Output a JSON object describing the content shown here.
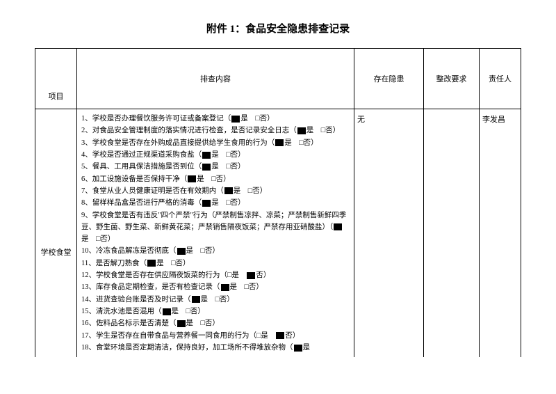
{
  "title": "附件 1：食品安全隐患排查记录",
  "headers": {
    "project": "项目",
    "content": "排查内容",
    "hazard": "存在隐患",
    "requirement": "整改要求",
    "person": "责任人"
  },
  "row": {
    "project": "学校食堂",
    "hazard": "无",
    "requirement": "",
    "person": "李发昌"
  },
  "items": [
    {
      "text": "1、学校是否办理餐饮服务许可证或备案登记（",
      "checked": true,
      "suffix": "是　□否）"
    },
    {
      "text": "2、对食品安全管理制度的落实情况进行检查，是否记录安全日志（",
      "checked": true,
      "suffix": "是　□否）"
    },
    {
      "text": "3、学校食堂是否存在外购成品直接提供给学生食用的行为（",
      "checked": true,
      "suffix": "是　□否）"
    },
    {
      "text": "4、学校是否通过正规渠道采购食盐（",
      "checked": true,
      "suffix": "是　□否）"
    },
    {
      "text": "5、餐具、工用具保洁措施是否到位（",
      "checked": true,
      "suffix": "是　□否）"
    },
    {
      "text": "6、加工设施设备是否保持干净（",
      "checked": true,
      "suffix": "是　□否）"
    },
    {
      "text": "7、食堂从业人员健康证明是否在有效期内（",
      "checked": true,
      "suffix": "是　□否）"
    },
    {
      "text": "8、留样样品盒是否进行严格的消毒（",
      "checked": true,
      "suffix": "是　□否）"
    },
    {
      "text": "9、学校食堂是否有违反\"四个严禁\"行为（严禁制售凉拌、凉菜；严禁制售新鲜四季豆、野生菌、野生菜、新鲜黄花菜；严禁销售隔夜饭菜；严禁存用亚硝酸盐）（",
      "checked": true,
      "suffix": "是　□否）"
    },
    {
      "text": "10、冷冻食品解冻是否彻底（",
      "checked": true,
      "suffix": "是　□否）"
    },
    {
      "text": "11、是否解刀熟食（",
      "checked": true,
      "suffix": "是　□否）"
    },
    {
      "text": "12、学校食堂是否存在供应隔夜饭菜的行为（□是　",
      "checked": true,
      "suffix": "否）"
    },
    {
      "text": "13、库存食品定期检查，是否有检查记录（",
      "checked": true,
      "suffix": "是　□否）"
    },
    {
      "text": "14、进货查验台账是否及时记录（",
      "checked": true,
      "suffix": "是　□否）"
    },
    {
      "text": "15、清洗水池是否混用（",
      "checked": true,
      "suffix": "是　□否）"
    },
    {
      "text": "16、佐料品名标示是否清楚（",
      "checked": true,
      "suffix": "是　□否）"
    },
    {
      "text": "17、学生是否存在自带食品与营养餐一同食用的行为（□是　",
      "checked": true,
      "suffix": "否）"
    },
    {
      "text": "18、食堂环境是否定期清洁，保持良好，加工场所不得堆放杂物（",
      "checked": true,
      "suffix": "是"
    }
  ]
}
